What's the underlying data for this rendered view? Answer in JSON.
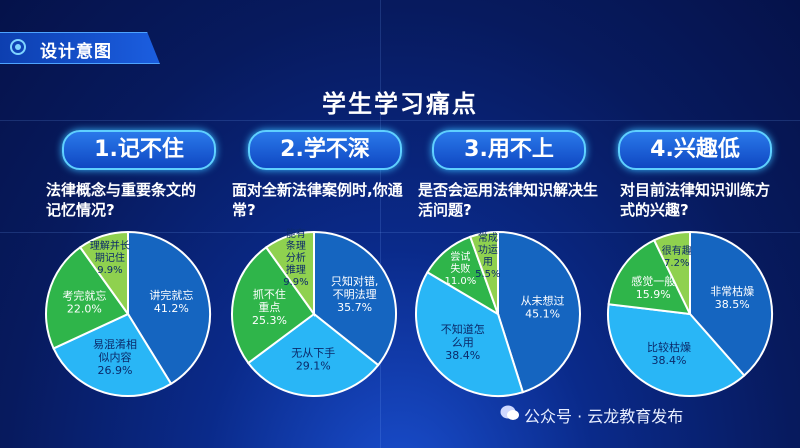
{
  "header": {
    "title": "设计意图"
  },
  "main_title": "学生学习痛点",
  "watermark": "公众号 · 云龙教育发布",
  "colors": {
    "dark_blue": "#1565c0",
    "light_blue": "#29b6f6",
    "green": "#2fb54a",
    "light_green": "#8fd14f"
  },
  "chart_data": [
    {
      "type": "pie",
      "title": "1.记不住",
      "subtitle": "法律概念与重要条文的记忆情况?",
      "slices": [
        {
          "label": "讲完就忘",
          "percent_label": "41.2%",
          "value": 41.2,
          "color": "#1565c0"
        },
        {
          "label": "易混淆相似内容",
          "percent_label": "26.9%",
          "value": 26.9,
          "color": "#29b6f6"
        },
        {
          "label": "考完就忘",
          "percent_label": "22.0%",
          "value": 22.0,
          "color": "#2fb54a"
        },
        {
          "label": "理解并长期记住",
          "percent_label": "9.9%",
          "value": 9.9,
          "color": "#8fd14f"
        }
      ]
    },
    {
      "type": "pie",
      "title": "2.学不深",
      "subtitle": "面对全新法律案例时,你通常?",
      "slices": [
        {
          "label": "只知对错,不明法理",
          "percent_label": "35.7%",
          "value": 35.7,
          "color": "#1565c0"
        },
        {
          "label": "无从下手",
          "percent_label": "29.1%",
          "value": 29.1,
          "color": "#29b6f6"
        },
        {
          "label": "抓不住重点",
          "percent_label": "25.3%",
          "value": 25.3,
          "color": "#2fb54a"
        },
        {
          "label": "能有条理分析推理",
          "percent_label": "9.9%",
          "value": 9.9,
          "color": "#8fd14f"
        }
      ]
    },
    {
      "type": "pie",
      "title": "3.用不上",
      "subtitle": "是否会运用法律知识解决生活问题?",
      "slices": [
        {
          "label": "从未想过",
          "percent_label": "45.1%",
          "value": 45.1,
          "color": "#1565c0"
        },
        {
          "label": "不知道怎么用",
          "percent_label": "38.4%",
          "value": 38.4,
          "color": "#29b6f6"
        },
        {
          "label": "尝试失败",
          "percent_label": "11.0%",
          "value": 11.0,
          "color": "#2fb54a"
        },
        {
          "label": "常成功运用",
          "percent_label": "5.5%",
          "value": 5.5,
          "color": "#8fd14f"
        }
      ]
    },
    {
      "type": "pie",
      "title": "4.兴趣低",
      "subtitle": "对目前法律知识训练方式的兴趣?",
      "slices": [
        {
          "label": "非常枯燥",
          "percent_label": "38.5%",
          "value": 38.5,
          "color": "#1565c0"
        },
        {
          "label": "比较枯燥",
          "percent_label": "38.4%",
          "value": 38.4,
          "color": "#29b6f6"
        },
        {
          "label": "感觉一般",
          "percent_label": "15.9%",
          "value": 15.9,
          "color": "#2fb54a"
        },
        {
          "label": "很有趣",
          "percent_label": "7.2%",
          "value": 7.2,
          "color": "#8fd14f"
        }
      ]
    }
  ]
}
